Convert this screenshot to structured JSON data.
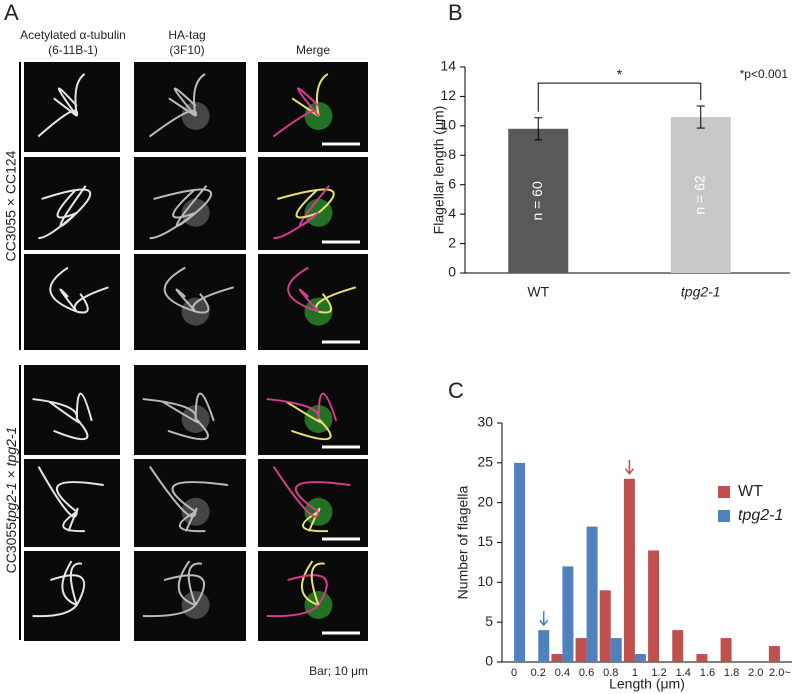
{
  "panel_labels": [
    "A",
    "B",
    "C"
  ],
  "panel_a": {
    "column_headers": [
      [
        "Acetylated α-tubulin",
        "(6-11B-1)"
      ],
      [
        "HA-tag",
        "(3F10)"
      ],
      [
        "Merge"
      ]
    ],
    "row_groups": [
      [
        "CC3055 × CC124"
      ],
      [
        "CC3055",
        "tpg2-1",
        " × ",
        "tpg2-1"
      ]
    ],
    "scale_note": "Bar; 10 μm"
  },
  "chart_data": [
    {
      "type": "bar",
      "ylabel": "Flagellar length (μm)",
      "categories": [
        "WT",
        "tpg2-1"
      ],
      "values": [
        9.8,
        10.6
      ],
      "errors": [
        0.75,
        0.75
      ],
      "color": [
        "#595959",
        "#c8c8c8"
      ],
      "ylim": [
        0,
        14
      ],
      "yticks": [
        0,
        2,
        4,
        6,
        8,
        10,
        12,
        14
      ],
      "grid": false,
      "annotations": [
        "n = 60",
        "n = 62",
        "*",
        "*p<0.001"
      ]
    },
    {
      "type": "bar",
      "xlabel": "Length (μm)",
      "ylabel": "Number of flagella",
      "categories": [
        "0",
        "0.2",
        "0.4",
        "0.6",
        "0.8",
        "1",
        "1.2",
        "1.4",
        "1.6",
        "1.8",
        "2.0",
        "2.0~"
      ],
      "series": [
        {
          "name": "WT",
          "color": "#c0504d",
          "values": [
            0,
            0,
            1,
            3,
            9,
            23,
            14,
            4,
            1,
            3,
            0,
            2
          ]
        },
        {
          "name": "tpg2-1",
          "color": "#4f81bd",
          "values": [
            25,
            4,
            12,
            17,
            3,
            1,
            0,
            0,
            0,
            0,
            0,
            0
          ]
        }
      ],
      "ylim": [
        0,
        30
      ],
      "yticks": [
        0,
        5,
        10,
        15,
        20,
        25,
        30
      ],
      "grid": false,
      "legend": "upper-right"
    }
  ]
}
